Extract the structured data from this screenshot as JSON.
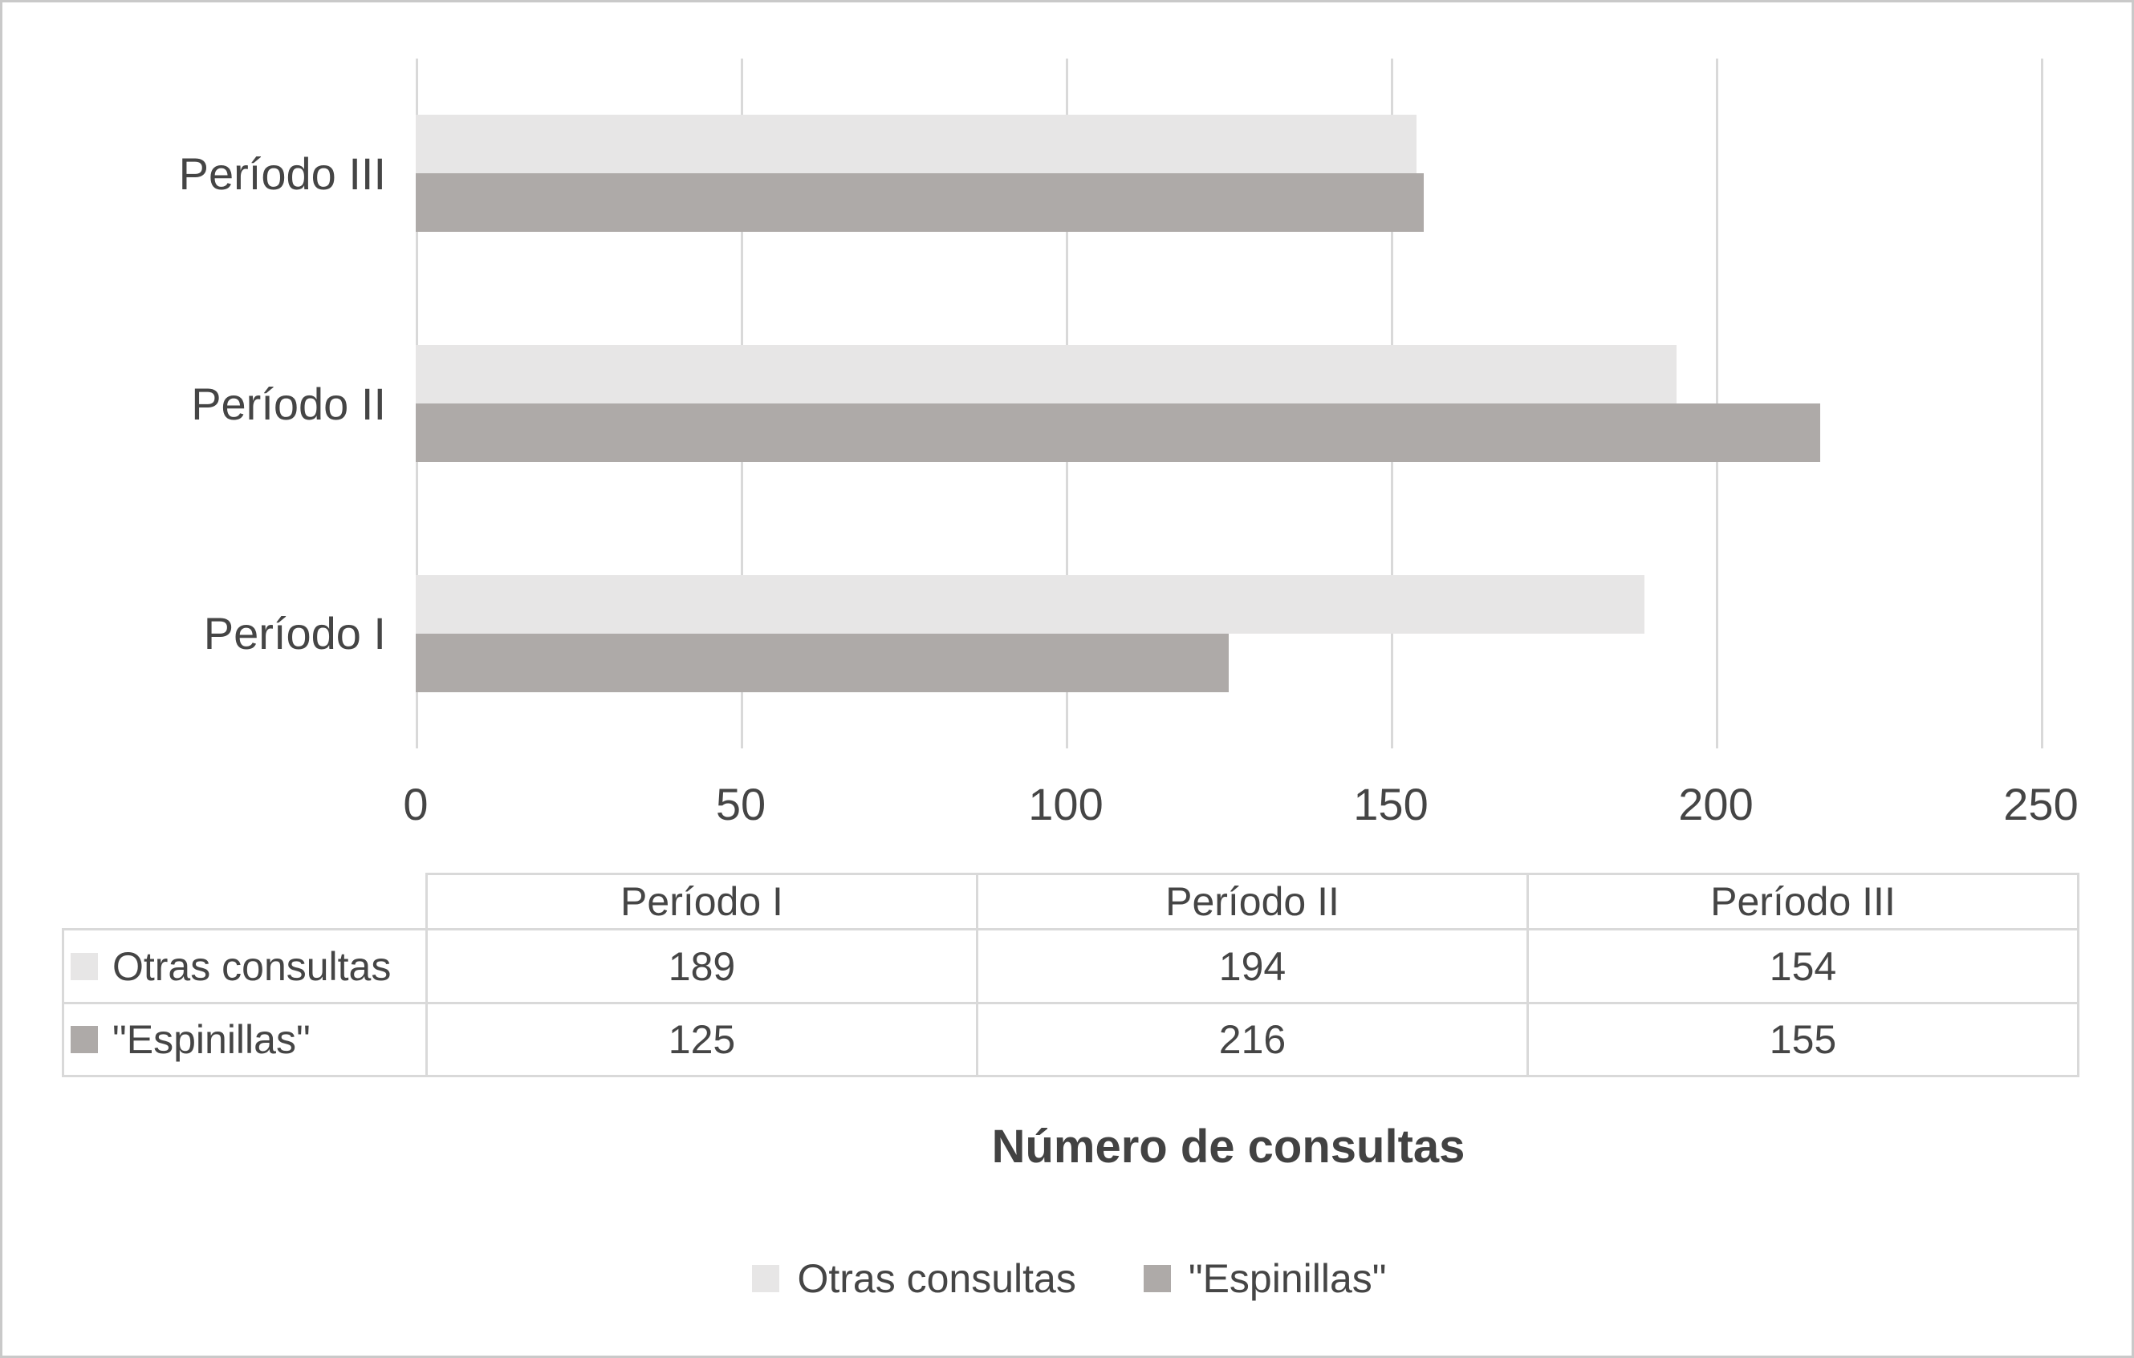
{
  "chart_data": {
    "type": "bar",
    "orientation": "horizontal",
    "title": "Número de consultas",
    "categories": [
      "Período I",
      "Período II",
      "Período III"
    ],
    "category_display_order_top_to_bottom": [
      "Período III",
      "Período II",
      "Período I"
    ],
    "series": [
      {
        "name": "Otras consultas",
        "color": "#e7e6e6",
        "values": [
          189,
          194,
          154
        ]
      },
      {
        "name": "\"Espinillas\"",
        "color": "#aeaaa8",
        "values": [
          125,
          216,
          155
        ]
      }
    ],
    "xlabel": "",
    "ylabel": "",
    "xlim": [
      0,
      250
    ],
    "x_ticks": [
      0,
      50,
      100,
      150,
      200,
      250
    ],
    "gridlines": true,
    "legend_position": "bottom"
  },
  "data_table": {
    "column_headers": [
      "Período I",
      "Período II",
      "Período III"
    ],
    "rows": [
      {
        "label": "Otras consultas",
        "swatch_color": "#e7e6e6",
        "values": [
          "189",
          "194",
          "154"
        ]
      },
      {
        "label": "\"Espinillas\"",
        "swatch_color": "#aeaaa8",
        "values": [
          "125",
          "216",
          "155"
        ]
      }
    ]
  },
  "legend": {
    "items": [
      {
        "label": "Otras consultas",
        "color": "#e7e6e6"
      },
      {
        "label": "\"Espinillas\"",
        "color": "#aeaaa8"
      }
    ]
  },
  "colors": {
    "series_light": "#e7e6e6",
    "series_dark": "#aeaaa8",
    "gridline": "#d9d9d9",
    "table_border": "#d9d9d9",
    "text": "#454545",
    "outer_border": "#c9c9c9",
    "background": "#ffffff"
  }
}
